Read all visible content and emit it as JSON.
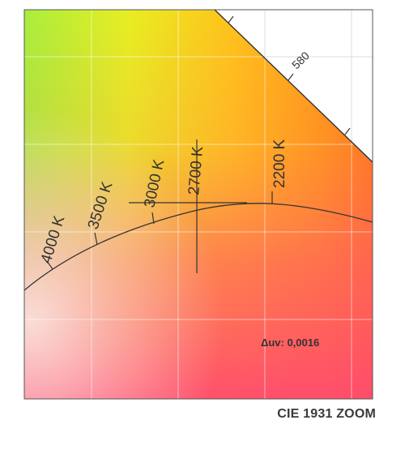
{
  "caption": "CIE 1931 ZOOM",
  "delta_uv_label": "Δuv: 0,0016",
  "cct_labels": [
    "4000 K",
    "3500 K",
    "3000 K",
    "2700 K",
    "2200 K"
  ],
  "wavelength_label": "580",
  "colors": {
    "line": "#333333",
    "frame": "#555555",
    "grid": "#ffffff",
    "text": "#333333"
  }
}
